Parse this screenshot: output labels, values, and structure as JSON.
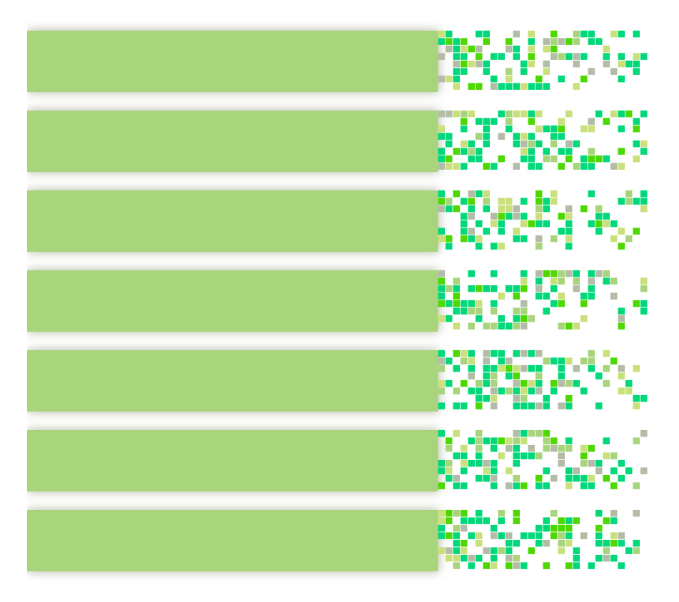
{
  "chart_data": {
    "type": "bar",
    "orientation": "horizontal",
    "categories": [
      null,
      null,
      null,
      null,
      null,
      null,
      null
    ],
    "values": [
      66,
      66,
      66,
      66,
      66,
      66,
      66
    ],
    "color": "#a8d47c",
    "xlim": [
      0,
      100
    ],
    "xticks": [
      0,
      100
    ],
    "grid": false,
    "tick_labels": false
  }
}
